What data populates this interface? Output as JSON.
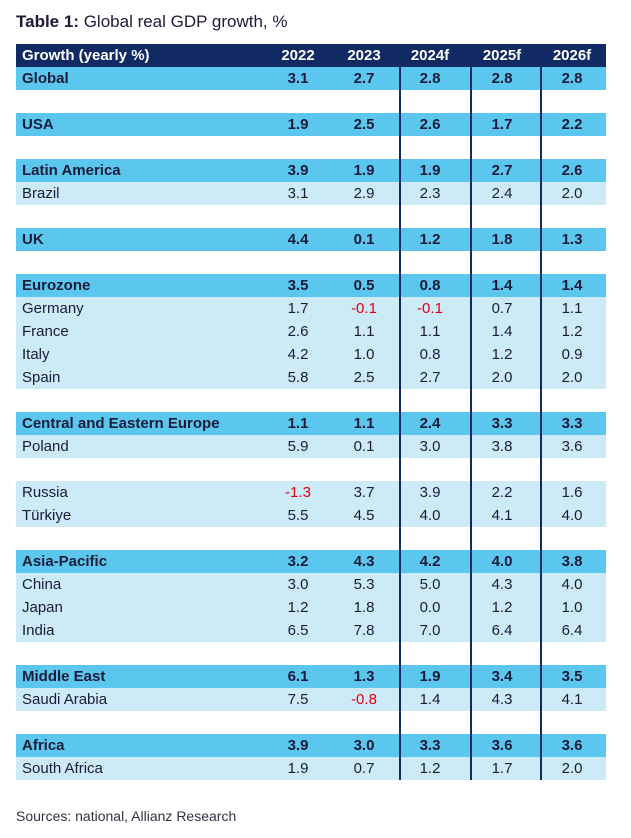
{
  "title": {
    "bold": "Table 1:",
    "text": " Global real GDP growth, %"
  },
  "header": {
    "label": "Growth (yearly %)",
    "years": [
      "2022",
      "2023",
      "2024f",
      "2025f",
      "2026f"
    ]
  },
  "groups": [
    {
      "rows": [
        {
          "type": "major",
          "label": "Global",
          "values": [
            "3.1",
            "2.7",
            "2.8",
            "2.8",
            "2.8"
          ]
        }
      ]
    },
    {
      "rows": [
        {
          "type": "major",
          "label": "USA",
          "values": [
            "1.9",
            "2.5",
            "2.6",
            "1.7",
            "2.2"
          ]
        }
      ]
    },
    {
      "rows": [
        {
          "type": "major",
          "label": "Latin America",
          "values": [
            "3.9",
            "1.9",
            "1.9",
            "2.7",
            "2.6"
          ]
        },
        {
          "type": "minor",
          "label": "Brazil",
          "values": [
            "3.1",
            "2.9",
            "2.3",
            "2.4",
            "2.0"
          ]
        }
      ]
    },
    {
      "rows": [
        {
          "type": "major",
          "label": "UK",
          "values": [
            "4.4",
            "0.1",
            "1.2",
            "1.8",
            "1.3"
          ]
        }
      ]
    },
    {
      "rows": [
        {
          "type": "major",
          "label": "Eurozone",
          "values": [
            "3.5",
            "0.5",
            "0.8",
            "1.4",
            "1.4"
          ]
        },
        {
          "type": "minor",
          "label": "Germany",
          "values": [
            "1.7",
            "-0.1",
            "-0.1",
            "0.7",
            "1.1"
          ]
        },
        {
          "type": "minor",
          "label": "France",
          "values": [
            "2.6",
            "1.1",
            "1.1",
            "1.4",
            "1.2"
          ]
        },
        {
          "type": "minor",
          "label": "Italy",
          "values": [
            "4.2",
            "1.0",
            "0.8",
            "1.2",
            "0.9"
          ]
        },
        {
          "type": "minor",
          "label": "Spain",
          "values": [
            "5.8",
            "2.5",
            "2.7",
            "2.0",
            "2.0"
          ]
        }
      ]
    },
    {
      "rows": [
        {
          "type": "major",
          "label": "Central and Eastern Europe",
          "values": [
            "1.1",
            "1.1",
            "2.4",
            "3.3",
            "3.3"
          ]
        },
        {
          "type": "minor",
          "label": "Poland",
          "values": [
            "5.9",
            "0.1",
            "3.0",
            "3.8",
            "3.6"
          ]
        }
      ]
    },
    {
      "rows": [
        {
          "type": "minor",
          "label": "Russia",
          "values": [
            "-1.3",
            "3.7",
            "3.9",
            "2.2",
            "1.6"
          ]
        },
        {
          "type": "minor",
          "label": "Türkiye",
          "values": [
            "5.5",
            "4.5",
            "4.0",
            "4.1",
            "4.0"
          ]
        }
      ]
    },
    {
      "rows": [
        {
          "type": "major",
          "label": "Asia-Pacific",
          "values": [
            "3.2",
            "4.3",
            "4.2",
            "4.0",
            "3.8"
          ]
        },
        {
          "type": "minor",
          "label": "China",
          "values": [
            "3.0",
            "5.3",
            "5.0",
            "4.3",
            "4.0"
          ]
        },
        {
          "type": "minor",
          "label": "Japan",
          "values": [
            "1.2",
            "1.8",
            "0.0",
            "1.2",
            "1.0"
          ]
        },
        {
          "type": "minor",
          "label": "India",
          "values": [
            "6.5",
            "7.8",
            "7.0",
            "6.4",
            "6.4"
          ]
        }
      ]
    },
    {
      "rows": [
        {
          "type": "major",
          "label": "Middle East",
          "values": [
            "6.1",
            "1.3",
            "1.9",
            "3.4",
            "3.5"
          ]
        },
        {
          "type": "minor",
          "label": "Saudi Arabia",
          "values": [
            "7.5",
            "-0.8",
            "1.4",
            "4.3",
            "4.1"
          ]
        }
      ]
    },
    {
      "rows": [
        {
          "type": "major",
          "label": "Africa",
          "values": [
            "3.9",
            "3.0",
            "3.3",
            "3.6",
            "3.6"
          ]
        },
        {
          "type": "minor",
          "label": "South Africa",
          "values": [
            "1.9",
            "0.7",
            "1.2",
            "1.7",
            "2.0"
          ]
        }
      ]
    }
  ],
  "source": "Sources: national, Allianz Research",
  "colors": {
    "header": "#122a63",
    "major": "#5bc6ee",
    "minor": "#cdeaf7",
    "negative": "#e2000f"
  }
}
